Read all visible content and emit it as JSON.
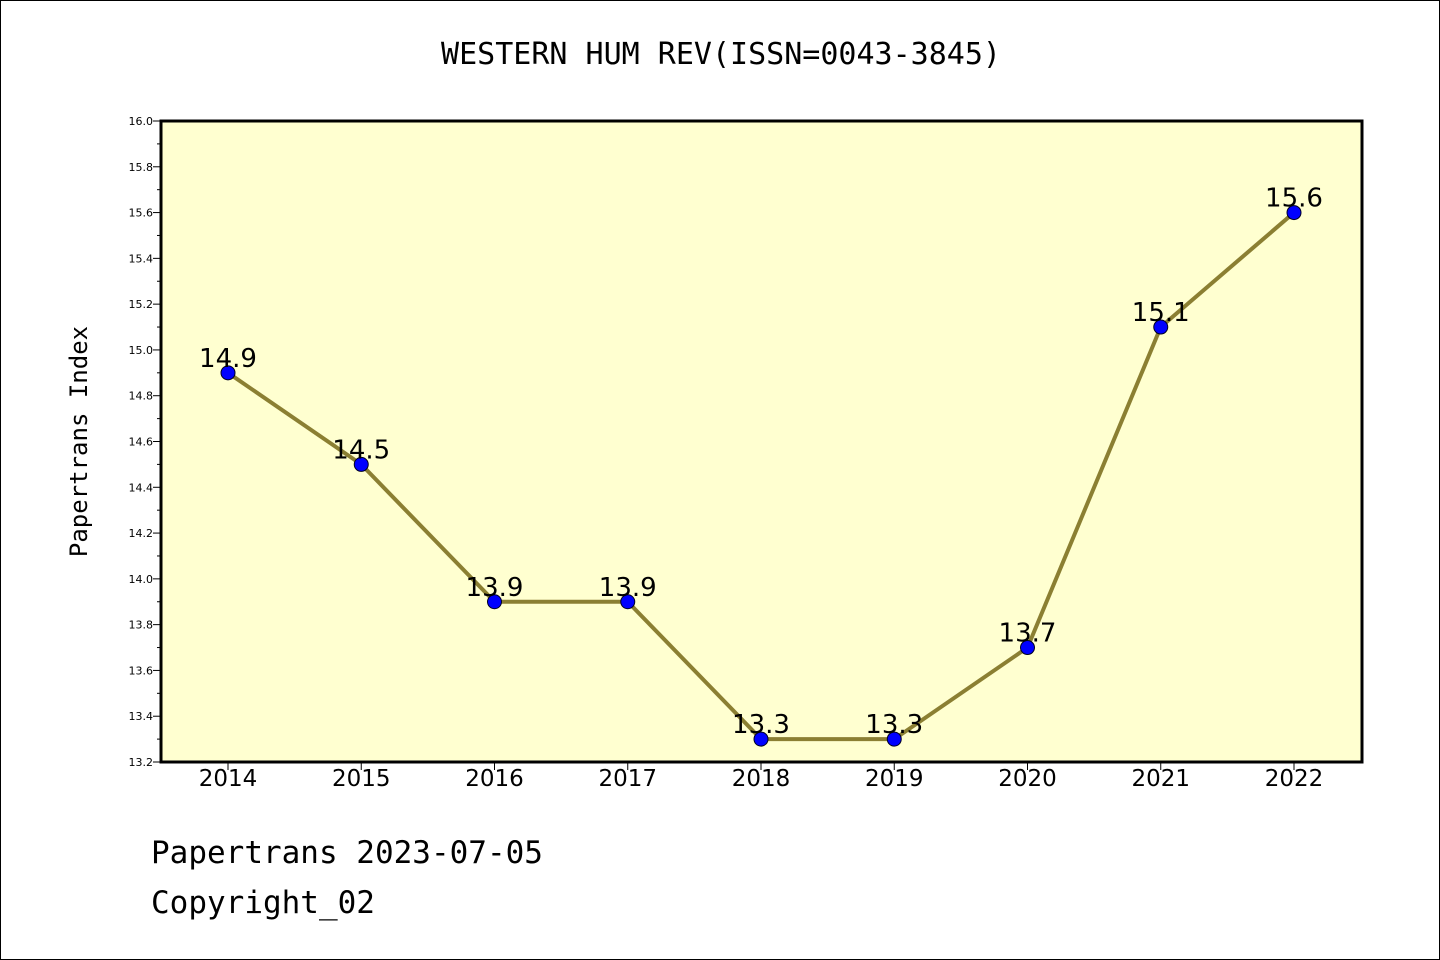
{
  "title": "WESTERN HUM REV(ISSN=0043-3845)",
  "footer": {
    "line1": "Papertrans 2023-07-05",
    "line2": "Copyright_02"
  },
  "colors": {
    "plot_background": "#FFFFD0",
    "line": "#8B7F32",
    "marker": "#0000FF",
    "frame": "#000000"
  },
  "chart_data": {
    "type": "line",
    "title": "WESTERN HUM REV(ISSN=0043-3845)",
    "xlabel": "",
    "ylabel": "Papertrans Index",
    "categories": [
      "2014",
      "2015",
      "2016",
      "2017",
      "2018",
      "2019",
      "2020",
      "2021",
      "2022"
    ],
    "series": [
      {
        "values": [
          14.9,
          14.5,
          13.9,
          13.9,
          13.3,
          13.3,
          13.7,
          15.1,
          15.6
        ],
        "labels": [
          "14.9",
          "14.5",
          "13.9",
          "13.9",
          "13.3",
          "13.3",
          "13.7",
          "15.1",
          "15.6"
        ]
      }
    ],
    "ylim": [
      13.2,
      16.0
    ],
    "yticks": [
      "13.2",
      "13.4",
      "13.6",
      "13.8",
      "14.0",
      "14.2",
      "14.4",
      "14.6",
      "14.8",
      "15.0",
      "15.2",
      "15.4",
      "15.6",
      "15.8",
      "16.0"
    ],
    "grid": false,
    "legend": "none"
  }
}
